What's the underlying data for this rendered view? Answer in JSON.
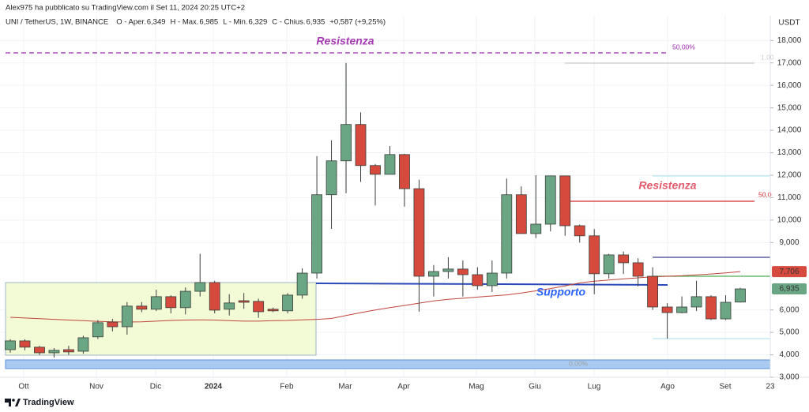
{
  "chart_data": {
    "type": "candlestick",
    "publisher": "Alex975 ha pubblicato su TradingView.com il Set 11, 2024 20:25 UTC+2",
    "symbol": "UNI / TetherUS, 1W, BINANCE",
    "ohlc_legend": [
      {
        "label": "O - Aper.",
        "value": "6,349"
      },
      {
        "label": "H - Max.",
        "value": "6,985"
      },
      {
        "label": "L - Min.",
        "value": "6,329"
      },
      {
        "label": "C - Chius.",
        "value": "6,935"
      }
    ],
    "change": "+0,587 (+9,25%)",
    "currency": "USDT",
    "x_labels": [
      "Ott",
      "Nov",
      "Dic",
      "2024",
      "Feb",
      "Mar",
      "Apr",
      "Mag",
      "Giu",
      "Lug",
      "Ago",
      "Set",
      "23"
    ],
    "annotations": [
      "Resistenza",
      "Resistenza",
      "Supporto",
      "50,00%",
      "1,00",
      "50,0",
      "0,00%"
    ],
    "open": [
      4.23,
      4.62,
      4.34,
      4.09,
      4.23,
      4.16,
      4.8,
      5.46,
      5.25,
      6.17,
      6.03,
      6.59,
      6.1,
      6.83,
      7.22,
      6.03,
      6.41,
      6.38,
      6.03,
      5.96,
      6.66,
      7.64,
      11.13,
      12.64,
      14.26,
      12.43,
      12.04,
      12.92,
      11.4,
      7.5,
      7.71,
      7.82,
      7.57,
      7.08,
      7.64,
      11.13,
      9.4,
      9.82,
      11.97,
      9.75,
      9.3,
      7.61,
      8.45,
      8.1,
      7.5,
      6.13,
      5.88,
      6.13,
      6.59,
      5.6,
      6.349
    ],
    "high": [
      4.69,
      4.69,
      4.4,
      4.3,
      4.4,
      4.85,
      5.55,
      5.6,
      6.35,
      6.35,
      6.9,
      6.65,
      7.0,
      8.5,
      7.3,
      6.7,
      6.75,
      6.5,
      6.1,
      6.75,
      7.85,
      12.85,
      13.55,
      17.0,
      14.8,
      12.5,
      13.3,
      12.95,
      11.8,
      8.0,
      8.35,
      8.2,
      7.9,
      8.2,
      11.85,
      11.5,
      12.0,
      11.97,
      11.97,
      9.8,
      9.6,
      8.5,
      8.6,
      8.3,
      7.9,
      6.3,
      6.6,
      7.3,
      6.65,
      6.65,
      6.985
    ],
    "low": [
      4.09,
      4.2,
      4.0,
      3.88,
      4.0,
      4.05,
      4.7,
      5.05,
      4.9,
      5.9,
      5.95,
      5.85,
      5.8,
      6.6,
      5.85,
      5.75,
      6.05,
      5.65,
      5.9,
      5.85,
      6.5,
      7.4,
      9.61,
      11.2,
      11.7,
      10.65,
      12.04,
      10.6,
      5.92,
      6.6,
      7.4,
      6.6,
      6.9,
      6.8,
      7.4,
      9.4,
      9.2,
      9.5,
      9.3,
      9.0,
      6.7,
      7.4,
      7.6,
      7.05,
      6.0,
      4.72,
      5.85,
      5.95,
      5.55,
      5.55,
      6.329
    ],
    "close": [
      4.62,
      4.34,
      4.09,
      4.2,
      4.13,
      4.76,
      5.43,
      5.25,
      6.17,
      6.03,
      6.59,
      6.1,
      6.83,
      7.22,
      5.99,
      6.31,
      6.34,
      5.92,
      5.96,
      6.66,
      7.64,
      11.13,
      12.64,
      14.26,
      12.43,
      12.04,
      12.92,
      11.4,
      7.5,
      7.71,
      7.82,
      7.57,
      7.08,
      7.64,
      11.13,
      9.4,
      9.82,
      11.97,
      9.75,
      9.3,
      7.61,
      8.45,
      8.1,
      7.5,
      6.13,
      5.88,
      6.13,
      6.59,
      5.6,
      6.34,
      6.935
    ],
    "close_label": "6,935",
    "ma_values": [
      5.67,
      5.64,
      5.61,
      5.58,
      5.55,
      5.52,
      5.49,
      5.47,
      5.46,
      5.47,
      5.5,
      5.53,
      5.55,
      5.56,
      5.55,
      5.52,
      5.5,
      5.5,
      5.52,
      5.53,
      5.56,
      5.58,
      5.62,
      5.75,
      5.88,
      6.0,
      6.1,
      6.2,
      6.3,
      6.4,
      6.47,
      6.52,
      6.57,
      6.62,
      6.67,
      6.75,
      6.85,
      6.95,
      7.07,
      7.2,
      7.28,
      7.33,
      7.38,
      7.43,
      7.48,
      7.5,
      7.52,
      7.56,
      7.6,
      7.65,
      7.706
    ],
    "ma_label": "7,706",
    "ma_color": "#c0443c",
    "up_color": "#6aa684",
    "down_color": "#d6493d",
    "ylim": [
      3,
      19.1
    ],
    "yticks": [
      {
        "value": 3,
        "label": "3,000"
      },
      {
        "value": 4,
        "label": "4,000"
      },
      {
        "value": 5,
        "label": "5,000"
      },
      {
        "value": 6,
        "label": "6,000"
      },
      {
        "value": 9,
        "label": "9,000"
      },
      {
        "value": 10,
        "label": "10,000"
      },
      {
        "value": 11,
        "label": "11,000"
      },
      {
        "value": 12,
        "label": "12,000"
      },
      {
        "value": 13,
        "label": "13,000"
      },
      {
        "value": 14,
        "label": "14,000"
      },
      {
        "value": 15,
        "label": "15,000"
      },
      {
        "value": 16,
        "label": "16,000"
      },
      {
        "value": 17,
        "label": "17,000"
      },
      {
        "value": 18,
        "label": "18,000"
      }
    ],
    "grid": true,
    "footer": "TradingView"
  }
}
